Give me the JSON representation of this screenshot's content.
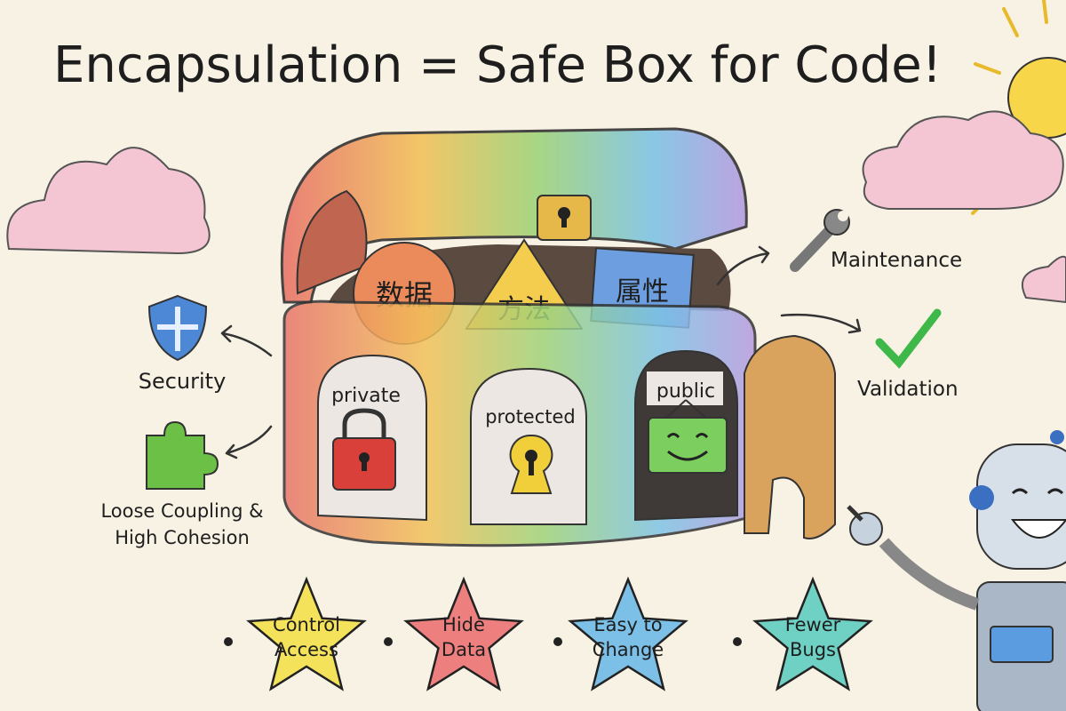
{
  "title": "Encapsulation = Safe Box for Code!",
  "box": {
    "items": [
      "数据",
      "方法",
      "属性"
    ],
    "doors": [
      {
        "label": "private",
        "icon": "padlock-icon"
      },
      {
        "label": "protected",
        "icon": "keyhole-icon"
      },
      {
        "label": "public",
        "icon": "smiley-sign-icon"
      }
    ]
  },
  "benefits_left": [
    {
      "label": "Security",
      "icon": "shield-icon"
    },
    {
      "label_line1": "Loose Coupling &",
      "label_line2": "High Cohesion",
      "icon": "puzzle-icon"
    }
  ],
  "benefits_right": [
    {
      "label": "Maintenance",
      "icon": "wrench-icon"
    },
    {
      "label": "Validation",
      "icon": "checkmark-icon"
    }
  ],
  "stars": [
    {
      "line1": "Control",
      "line2": "Access",
      "color": "#f3e25a"
    },
    {
      "line1": "Hide",
      "line2": "Data",
      "color": "#ee7f7f"
    },
    {
      "line1": "Easy to",
      "line2": "Change",
      "color": "#7cc0e8"
    },
    {
      "line1": "Fewer",
      "line2": "Bugs",
      "color": "#6fd0c4"
    }
  ]
}
